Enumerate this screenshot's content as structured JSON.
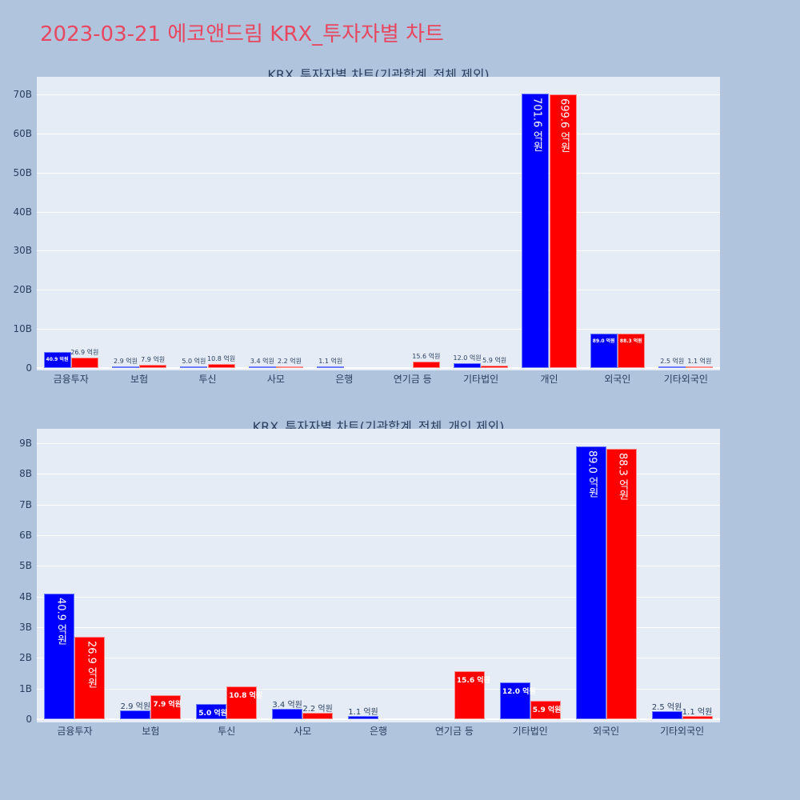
{
  "page": {
    "title": "2023-03-21 에코앤드림 KRX_투자자별 차트",
    "title_color": "#e8475f",
    "background": "#b0c4de",
    "plot_background": "#e5ecf6"
  },
  "series_colors": {
    "buy": "#0000ff",
    "sell": "#ff0000"
  },
  "chart_data": [
    {
      "type": "bar",
      "title": "KRX_투자자별 차트(기관합계_전체 제외)",
      "categories": [
        "금융투자",
        "보험",
        "투신",
        "사모",
        "은행",
        "연기금 등",
        "기타법인",
        "개인",
        "외국인",
        "기타외국인"
      ],
      "series": [
        {
          "name": "blue",
          "color": "#0000ff",
          "values": [
            4.09,
            0.29,
            0.5,
            0.34,
            0.11,
            0,
            1.2,
            70.16,
            8.9,
            0.25
          ],
          "labels": [
            "40.9 억원",
            "2.9 억원",
            "5.0 억원",
            "3.4 억원",
            "1.1 억원",
            "",
            "12.0 억원",
            "701.6 억원",
            "89.0 억원",
            "2.5 억원"
          ]
        },
        {
          "name": "red",
          "color": "#ff0000",
          "values": [
            2.69,
            0.79,
            1.08,
            0.22,
            0,
            1.56,
            0.59,
            69.96,
            8.83,
            0.11
          ],
          "labels": [
            "26.9 억원",
            "7.9 억원",
            "10.8 억원",
            "2.2 억원",
            "",
            "15.6 억원",
            "5.9 억원",
            "699.6 억원",
            "88.3 억원",
            "1.1 억원"
          ]
        }
      ],
      "yunit": "B (KRW billions)",
      "yticks": [
        "0",
        "10B",
        "20B",
        "30B",
        "40B",
        "50B",
        "60B",
        "70B"
      ],
      "ylim": [
        0,
        73
      ],
      "xlabel": "",
      "ylabel": "",
      "grid": true,
      "legend": "none"
    },
    {
      "type": "bar",
      "title": "KRX_투자자별 차트(기관합계_전체_개인 제외)",
      "categories": [
        "금융투자",
        "보험",
        "투신",
        "사모",
        "은행",
        "연기금 등",
        "기타법인",
        "외국인",
        "기타외국인"
      ],
      "series": [
        {
          "name": "blue",
          "color": "#0000ff",
          "values": [
            4.09,
            0.29,
            0.5,
            0.34,
            0.11,
            0,
            1.2,
            8.9,
            0.25
          ],
          "labels": [
            "40.9 억원",
            "2.9 억원",
            "5.0 억원",
            "3.4 억원",
            "1.1 억원",
            "",
            "12.0 억원",
            "89.0 억원",
            "2.5 억원"
          ]
        },
        {
          "name": "red",
          "color": "#ff0000",
          "values": [
            2.69,
            0.79,
            1.08,
            0.22,
            0,
            1.56,
            0.59,
            8.83,
            0.11
          ],
          "labels": [
            "26.9 억원",
            "7.9 억원",
            "10.8 억원",
            "2.2 억원",
            "",
            "15.6 억원",
            "5.9 억원",
            "88.3 억원",
            "1.1 억원"
          ]
        }
      ],
      "yunit": "B (KRW billions)",
      "yticks": [
        "0",
        "1B",
        "2B",
        "3B",
        "4B",
        "5B",
        "6B",
        "7B",
        "8B",
        "9B"
      ],
      "ylim": [
        0,
        9.4
      ],
      "xlabel": "",
      "ylabel": "",
      "grid": true,
      "legend": "none"
    }
  ]
}
